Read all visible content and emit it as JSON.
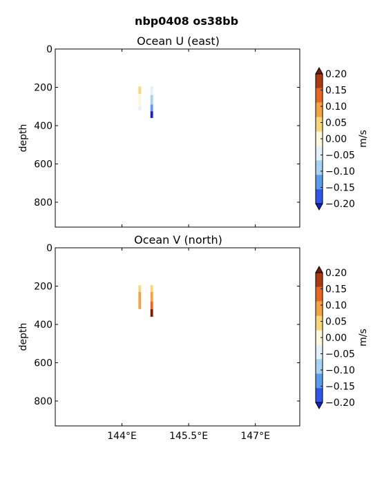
{
  "figure": {
    "suptitle": "nbp0408 os38bb"
  },
  "colorbar": {
    "label": "m/s",
    "ticks": [
      "0.20",
      "0.15",
      "0.10",
      "0.05",
      "0.00",
      "−0.05",
      "−0.10",
      "−0.15",
      "−0.20"
    ],
    "colors": [
      "#b03a10",
      "#e8661e",
      "#f3a23e",
      "#f9d779",
      "#fdf7dc",
      "#e4f1fb",
      "#a7d2f3",
      "#5c9cf0",
      "#2e55ee"
    ],
    "extend_colors": {
      "top": "#7a1d08",
      "bottom": "#1d20b5"
    }
  },
  "chart_data": [
    {
      "type": "heatmap",
      "title": "Ocean U (east)",
      "xlabel": "",
      "ylabel": "depth",
      "xlim": [
        142.5,
        148.0
      ],
      "ylim": [
        930,
        0
      ],
      "xticks": [
        144,
        145.5,
        147
      ],
      "xticklabels": [
        "",
        "",
        ""
      ],
      "yticks": [
        0,
        200,
        400,
        600,
        800
      ],
      "yticklabels": [
        "0",
        "200",
        "400",
        "600",
        "800"
      ],
      "cbar_units": "m/s",
      "columns": [
        {
          "lon": 144.4,
          "width": 0.06,
          "cells": [
            {
              "depth_top": 195,
              "depth_bottom": 235,
              "value": 0.0
            },
            {
              "depth_top": 235,
              "depth_bottom": 300,
              "value": -0.05
            },
            {
              "depth_top": 300,
              "depth_bottom": 320,
              "value": -0.07
            }
          ]
        },
        {
          "lon": 144.67,
          "width": 0.06,
          "cells": [
            {
              "depth_top": 195,
              "depth_bottom": 240,
              "value": -0.06
            },
            {
              "depth_top": 240,
              "depth_bottom": 290,
              "value": -0.12
            },
            {
              "depth_top": 290,
              "depth_bottom": 325,
              "value": -0.16
            },
            {
              "depth_top": 325,
              "depth_bottom": 360,
              "value": -0.25
            }
          ]
        }
      ]
    },
    {
      "type": "heatmap",
      "title": "Ocean V (north)",
      "xlabel": "",
      "ylabel": "depth",
      "xlim": [
        142.5,
        148.0
      ],
      "ylim": [
        930,
        0
      ],
      "xticks": [
        144,
        145.5,
        147
      ],
      "xticklabels": [
        "144°E",
        "145.5°E",
        "147°E"
      ],
      "yticks": [
        0,
        200,
        400,
        600,
        800
      ],
      "yticklabels": [
        "0",
        "200",
        "400",
        "600",
        "800"
      ],
      "cbar_units": "m/s",
      "columns": [
        {
          "lon": 144.4,
          "width": 0.06,
          "cells": [
            {
              "depth_top": 195,
              "depth_bottom": 230,
              "value": 0.03
            },
            {
              "depth_top": 230,
              "depth_bottom": 290,
              "value": 0.09
            },
            {
              "depth_top": 290,
              "depth_bottom": 320,
              "value": 0.06
            }
          ]
        },
        {
          "lon": 144.67,
          "width": 0.06,
          "cells": [
            {
              "depth_top": 195,
              "depth_bottom": 230,
              "value": 0.04
            },
            {
              "depth_top": 230,
              "depth_bottom": 280,
              "value": 0.08
            },
            {
              "depth_top": 280,
              "depth_bottom": 320,
              "value": 0.14
            },
            {
              "depth_top": 320,
              "depth_bottom": 360,
              "value": 0.22
            }
          ]
        }
      ]
    }
  ]
}
